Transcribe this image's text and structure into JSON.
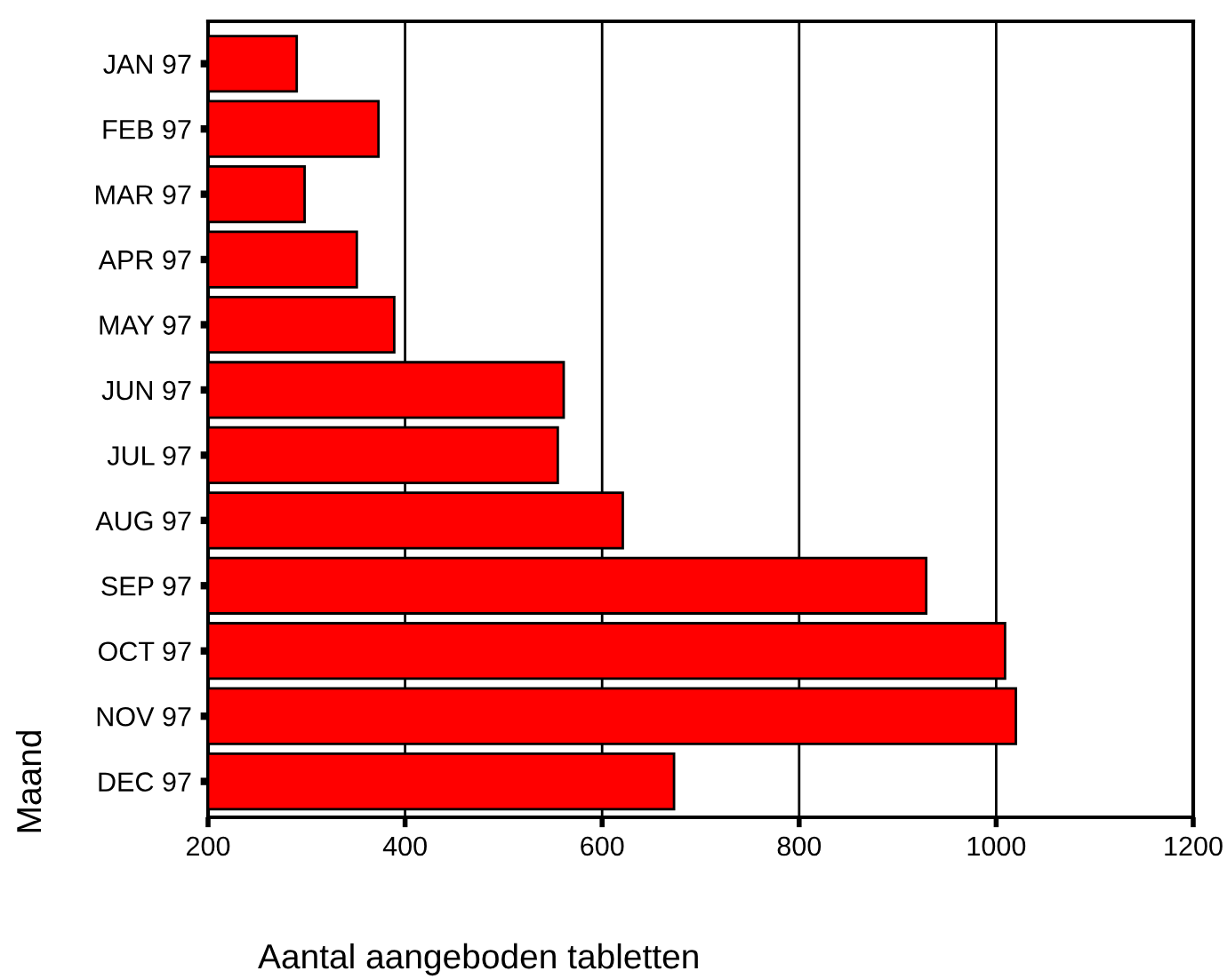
{
  "chart_data": {
    "type": "bar",
    "orientation": "horizontal",
    "xlabel": "Aantal aangeboden tabletten",
    "ylabel": "Maand",
    "categories": [
      "JAN 97",
      "FEB 97",
      "MAR 97",
      "APR 97",
      "MAY 97",
      "JUN 97",
      "JUL 97",
      "AUG 97",
      "SEP 97",
      "OCT 97",
      "NOV 97",
      "DEC 97"
    ],
    "values": [
      290,
      373,
      298,
      351,
      389,
      561,
      555,
      621,
      929,
      1009,
      1020,
      673
    ],
    "color": "#ff0000",
    "xlim": [
      200,
      1200
    ],
    "xticks": [
      200,
      400,
      600,
      800,
      1000,
      1200
    ],
    "grid": "x"
  }
}
